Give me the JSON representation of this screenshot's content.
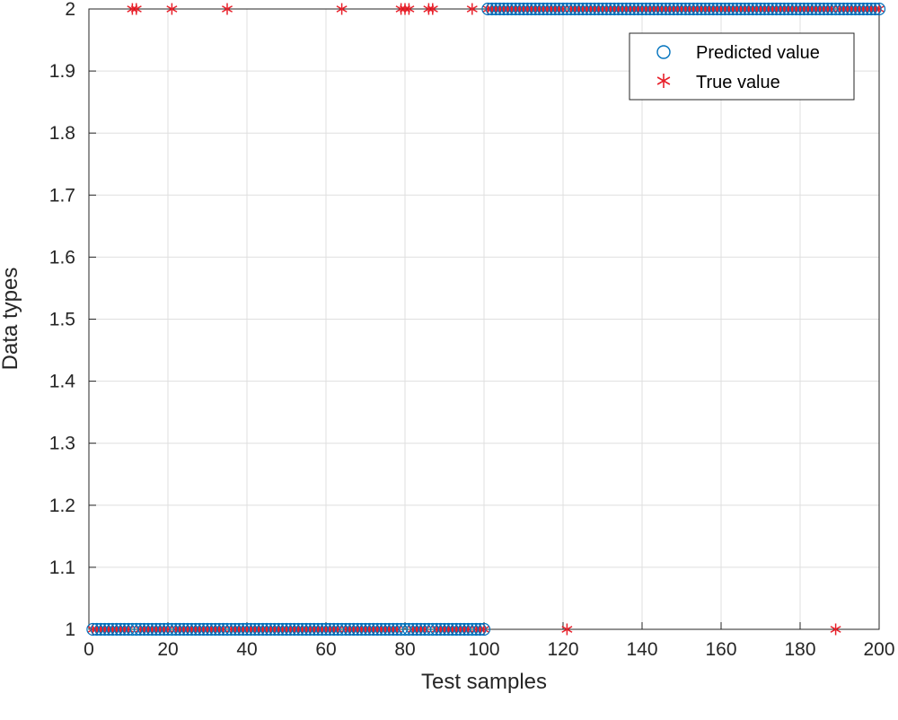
{
  "chart_data": {
    "type": "scatter",
    "xlabel": "Test samples",
    "ylabel": "Data types",
    "xlim": [
      0,
      200
    ],
    "ylim": [
      1,
      2
    ],
    "xticks": [
      0,
      20,
      40,
      60,
      80,
      100,
      120,
      140,
      160,
      180,
      200
    ],
    "yticks": [
      1,
      1.1,
      1.2,
      1.3,
      1.4,
      1.5,
      1.6,
      1.7,
      1.8,
      1.9,
      2
    ],
    "grid": true,
    "legend_position": "top-right",
    "series": [
      {
        "name": "Predicted value",
        "marker": "circle",
        "color": "#0072BD",
        "x_range": [
          1,
          200
        ],
        "runs": [
          {
            "from": 1,
            "to": 100,
            "y": 1
          },
          {
            "from": 101,
            "to": 200,
            "y": 2
          }
        ]
      },
      {
        "name": "True value",
        "marker": "asterisk",
        "color": "#E8202A",
        "x_range": [
          1,
          200
        ],
        "runs": [
          {
            "from": 1,
            "to": 100,
            "y": 1
          },
          {
            "from": 101,
            "to": 200,
            "y": 2
          }
        ],
        "exceptions": [
          {
            "x": 11,
            "y": 2
          },
          {
            "x": 12,
            "y": 2
          },
          {
            "x": 21,
            "y": 2
          },
          {
            "x": 35,
            "y": 2
          },
          {
            "x": 64,
            "y": 2
          },
          {
            "x": 79,
            "y": 2
          },
          {
            "x": 80,
            "y": 2
          },
          {
            "x": 81,
            "y": 2
          },
          {
            "x": 86,
            "y": 2
          },
          {
            "x": 87,
            "y": 2
          },
          {
            "x": 97,
            "y": 2
          },
          {
            "x": 121,
            "y": 1
          },
          {
            "x": 189,
            "y": 1
          }
        ]
      }
    ]
  }
}
